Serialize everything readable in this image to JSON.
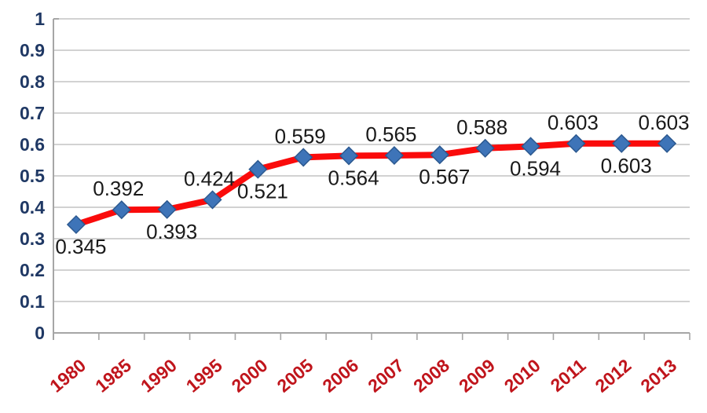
{
  "chart_data": {
    "type": "line",
    "title": "",
    "xlabel": "",
    "ylabel": "",
    "categories": [
      "1980",
      "1985",
      "1990",
      "1995",
      "2000",
      "2005",
      "2006",
      "2007",
      "2008",
      "2009",
      "2010",
      "2011",
      "2012",
      "2013"
    ],
    "series": [
      {
        "name": "",
        "values": [
          0.345,
          0.392,
          0.393,
          0.424,
          0.521,
          0.559,
          0.564,
          0.565,
          0.567,
          0.588,
          0.594,
          0.603,
          0.603,
          0.603
        ],
        "data_labels": [
          "0.345",
          "0.392",
          "0.393",
          "0.424",
          "0.521",
          "0.559",
          "0.564",
          "0.565",
          "0.567",
          "0.588",
          "0.594",
          "0.603",
          "0.603",
          "0.603"
        ],
        "data_label_positions": [
          "below",
          "above",
          "below",
          "above",
          "below",
          "above",
          "below",
          "above",
          "below",
          "above",
          "below",
          "above",
          "below",
          "above"
        ]
      }
    ],
    "ylim": [
      0,
      1
    ],
    "ytick_labels": [
      "0",
      "0.1",
      "0.2",
      "0.3",
      "0.4",
      "0.5",
      "0.6",
      "0.7",
      "0.8",
      "0.9",
      "1"
    ],
    "ytick_values": [
      0,
      0.1,
      0.2,
      0.3,
      0.4,
      0.5,
      0.6,
      0.7,
      0.8,
      0.9,
      1
    ],
    "grid": true,
    "legend": "none",
    "x_labels_rotation_deg": -40
  },
  "colors": {
    "background": "#FFFFFF",
    "line": "#FA0B0B",
    "marker_fill": "#3E74B8",
    "marker_stroke": "#2C5990",
    "y_label": "#1F3864",
    "x_label": "#C0151C",
    "data_label": "#1A1A1A",
    "gridline": "#C3C3C3",
    "axis": "#A6A6A6"
  }
}
